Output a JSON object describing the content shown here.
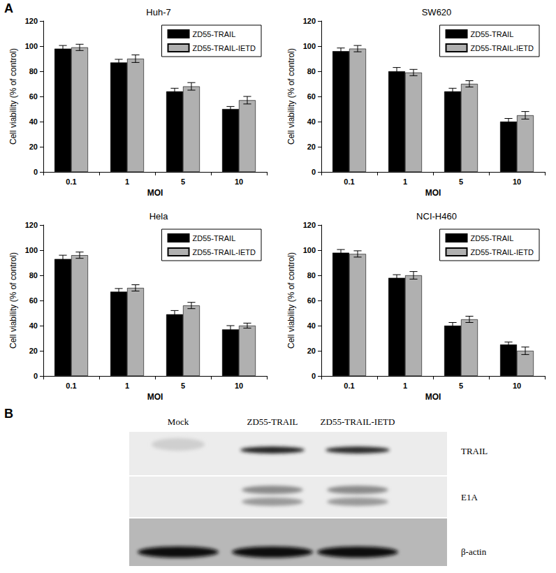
{
  "panel_labels": [
    "A",
    "B"
  ],
  "chart_data": [
    {
      "type": "bar",
      "title": "Huh-7",
      "x_label": "MOI",
      "y_label": "Cell viability (% of control)",
      "categories": [
        "0.1",
        "1",
        "5",
        "10"
      ],
      "series": [
        {
          "name": "ZD55-TRAIL",
          "color": "#000000",
          "values": [
            98,
            87,
            64,
            50
          ],
          "errors": [
            2.5,
            2.5,
            2.5,
            2
          ]
        },
        {
          "name": "ZD55-TRAIL-IETD",
          "color": "#b0b0b0",
          "values": [
            99,
            90,
            68,
            57
          ],
          "errors": [
            2.5,
            3,
            3,
            3
          ]
        }
      ],
      "ylim": [
        0,
        120
      ],
      "yticks": [
        0,
        20,
        40,
        60,
        80,
        100,
        120
      ],
      "grid": false,
      "legend": "upper right"
    },
    {
      "type": "bar",
      "title": "SW620",
      "x_label": "MOI",
      "y_label": "Cell viability (% of control)",
      "categories": [
        "0.1",
        "1",
        "5",
        "10"
      ],
      "series": [
        {
          "name": "ZD55-TRAIL",
          "color": "#000000",
          "values": [
            96,
            80,
            64,
            40
          ],
          "errors": [
            2.5,
            3,
            2.5,
            2.5
          ]
        },
        {
          "name": "ZD55-TRAIL-IETD",
          "color": "#b0b0b0",
          "values": [
            98,
            79,
            70,
            45
          ],
          "errors": [
            2.5,
            2.5,
            2.5,
            3
          ]
        }
      ],
      "ylim": [
        0,
        120
      ],
      "yticks": [
        0,
        20,
        40,
        60,
        80,
        100,
        120
      ],
      "grid": false,
      "legend": "upper right"
    },
    {
      "type": "bar",
      "title": "Hela",
      "x_label": "MOI",
      "y_label": "Cell viability (% of control)",
      "categories": [
        "0.1",
        "1",
        "5",
        "10"
      ],
      "series": [
        {
          "name": "ZD55-TRAIL",
          "color": "#000000",
          "values": [
            93,
            67,
            49,
            37
          ],
          "errors": [
            3,
            2.5,
            3,
            3
          ]
        },
        {
          "name": "ZD55-TRAIL-IETD",
          "color": "#b0b0b0",
          "values": [
            96,
            70,
            56,
            40
          ],
          "errors": [
            2.5,
            2.5,
            2.5,
            2
          ]
        }
      ],
      "ylim": [
        0,
        120
      ],
      "yticks": [
        0,
        20,
        40,
        60,
        80,
        100,
        120
      ],
      "grid": false,
      "legend": "upper right"
    },
    {
      "type": "bar",
      "title": "NCI-H460",
      "x_label": "MOI",
      "y_label": "Cell viability (% of control)",
      "categories": [
        "0.1",
        "1",
        "5",
        "10"
      ],
      "series": [
        {
          "name": "ZD55-TRAIL",
          "color": "#000000",
          "values": [
            98,
            78,
            40,
            25
          ],
          "errors": [
            2.5,
            2.5,
            2.5,
            2
          ]
        },
        {
          "name": "ZD55-TRAIL-IETD",
          "color": "#b0b0b0",
          "values": [
            97,
            80,
            45,
            20
          ],
          "errors": [
            2.5,
            3,
            2.5,
            3
          ]
        }
      ],
      "ylim": [
        0,
        120
      ],
      "yticks": [
        0,
        20,
        40,
        60,
        80,
        100,
        120
      ],
      "grid": false,
      "legend": "upper right"
    }
  ],
  "blot": {
    "lanes": [
      "Mock",
      "ZD55-TRAIL",
      "ZD55-TRAIL-IETD"
    ],
    "rows": [
      "TRAIL",
      "E1A",
      "β-actin"
    ]
  }
}
